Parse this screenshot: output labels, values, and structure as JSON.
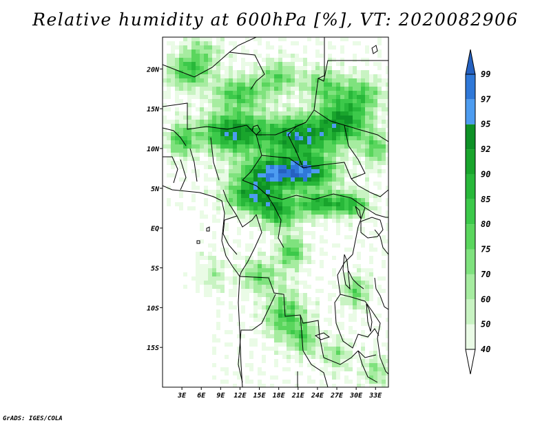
{
  "title": "Relative humidity at 600hPa [%], VT: 2020082906",
  "credit": "GrADS: IGES/COLA",
  "map": {
    "lon_range": [
      0,
      35
    ],
    "lat_range": [
      -20,
      24
    ],
    "lat_ticks": [
      {
        "value": 20,
        "label": "20N"
      },
      {
        "value": 15,
        "label": "15N"
      },
      {
        "value": 10,
        "label": "10N"
      },
      {
        "value": 5,
        "label": "5N"
      },
      {
        "value": 0,
        "label": "EQ"
      },
      {
        "value": -5,
        "label": "5S"
      },
      {
        "value": -10,
        "label": "10S"
      },
      {
        "value": -15,
        "label": "15S"
      }
    ],
    "lon_ticks": [
      {
        "value": 3,
        "label": "3E"
      },
      {
        "value": 6,
        "label": "6E"
      },
      {
        "value": 9,
        "label": "9E"
      },
      {
        "value": 12,
        "label": "12E"
      },
      {
        "value": 15,
        "label": "15E"
      },
      {
        "value": 18,
        "label": "18E"
      },
      {
        "value": 21,
        "label": "21E"
      },
      {
        "value": 24,
        "label": "24E"
      },
      {
        "value": 27,
        "label": "27E"
      },
      {
        "value": 30,
        "label": "30E"
      },
      {
        "value": 33,
        "label": "33E"
      }
    ]
  },
  "colorbar": {
    "levels": [
      "40",
      "50",
      "60",
      "70",
      "75",
      "80",
      "85",
      "90",
      "92",
      "95",
      "97",
      "99"
    ],
    "colors": [
      "#eafbe6",
      "#c8f3c2",
      "#a6eca0",
      "#7fe27e",
      "#5ad65d",
      "#3cc94a",
      "#28b83a",
      "#19a52c",
      "#0e9126",
      "#4d9cf0",
      "#2f78d8",
      "#2561c0"
    ],
    "low_color": "#ffffff",
    "high_color": "#2561c0"
  },
  "field": {
    "colors": [
      "#ffffff",
      "#eafbe6",
      "#c8f3c2",
      "#a6eca0",
      "#7fe27e",
      "#5ad65d",
      "#3cc94a",
      "#28b83a",
      "#19a52c",
      "#0e9126",
      "#4d9cf0",
      "#2f78d8",
      "#2561c0"
    ]
  }
}
